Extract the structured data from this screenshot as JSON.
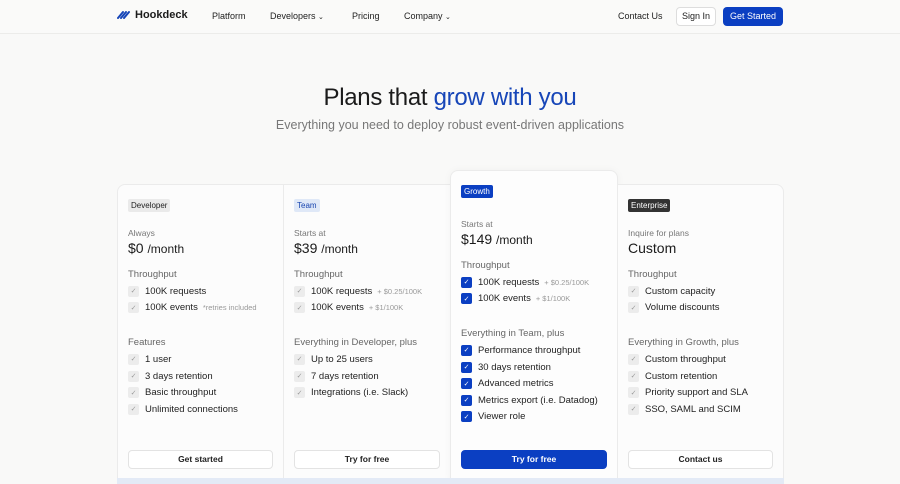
{
  "nav": {
    "logo": "Hookdeck",
    "items": [
      "Platform",
      "Developers",
      "Pricing",
      "Company"
    ],
    "contact": "Contact Us",
    "sign_in": "Sign In",
    "get_started": "Get Started"
  },
  "hero": {
    "title_a": "Plans that ",
    "title_b": "grow with you",
    "subtitle": "Everything you need to deploy robust event-driven applications"
  },
  "colors": {
    "accent": "#0b3fc2"
  },
  "plans": [
    {
      "badge": "Developer",
      "label": "Always",
      "price": "$0",
      "per": "/month",
      "sec1": "Throughput",
      "t": [
        {
          "text": "100K requests",
          "extra": ""
        },
        {
          "text": "100K events",
          "extra": "*retries included"
        }
      ],
      "sec2": "Features",
      "f": [
        "1 user",
        "3 days retention",
        "Basic throughput",
        "Unlimited connections"
      ],
      "cta": "Get started"
    },
    {
      "badge": "Team",
      "label": "Starts at",
      "price": "$39",
      "per": "/month",
      "sec1": "Throughput",
      "t": [
        {
          "text": "100K requests",
          "extra": "+ $0.25/100K"
        },
        {
          "text": "100K events",
          "extra": "+ $1/100K"
        }
      ],
      "sec2": "Everything in Developer, plus",
      "f": [
        "Up to 25 users",
        "7 days retention",
        "Integrations (i.e. Slack)"
      ],
      "cta": "Try for free"
    },
    {
      "badge": "Growth",
      "label": "Starts at",
      "price": "$149",
      "per": "/month",
      "sec1": "Throughput",
      "t": [
        {
          "text": "100K requests",
          "extra": "+ $0.25/100K"
        },
        {
          "text": "100K events",
          "extra": "+ $1/100K"
        }
      ],
      "sec2": "Everything in Team, plus",
      "f": [
        "Performance throughput",
        "30 days retention",
        "Advanced metrics",
        "Metrics export (i.e. Datadog)",
        "Viewer role"
      ],
      "cta": "Try for free"
    },
    {
      "badge": "Enterprise",
      "label": "Inquire for plans",
      "price": "Custom",
      "per": "",
      "sec1": "Throughput",
      "t": [
        {
          "text": "Custom capacity",
          "extra": ""
        },
        {
          "text": "Volume discounts",
          "extra": ""
        }
      ],
      "sec2": "Everything in Growth, plus",
      "f": [
        "Custom throughput",
        "Custom retention",
        "Priority support and SLA",
        "SSO, SAML and SCIM"
      ],
      "cta": "Contact us"
    }
  ]
}
